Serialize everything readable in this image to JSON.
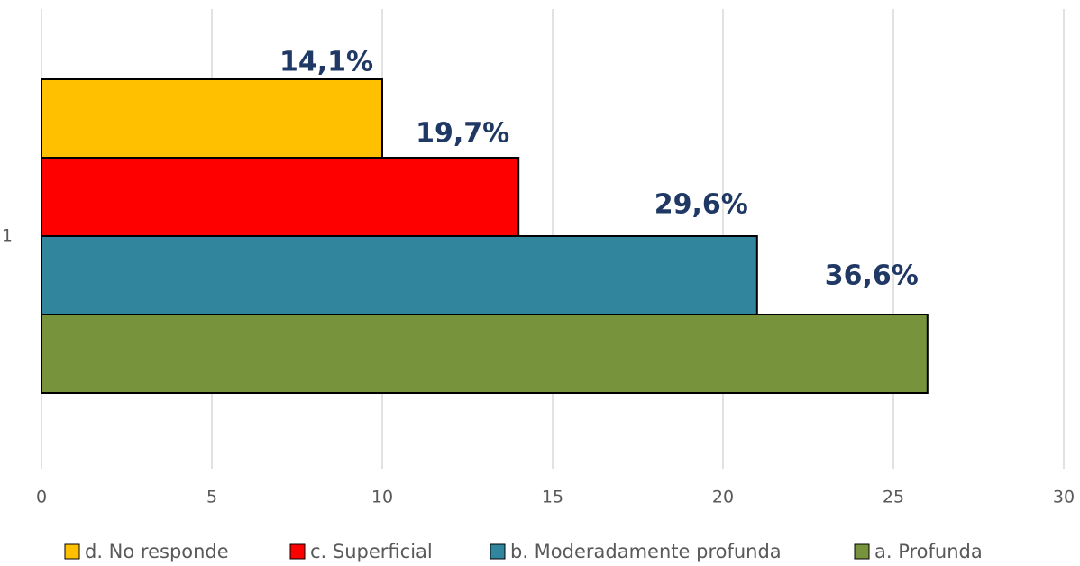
{
  "chart_data": {
    "type": "hbar",
    "categories": [
      "1"
    ],
    "series": [
      {
        "name": "d. No responde",
        "color": "#ffc000",
        "values": [
          10
        ],
        "value_labels": [
          "14,1%"
        ]
      },
      {
        "name": "c. Superficial",
        "color": "#ff0000",
        "values": [
          14
        ],
        "value_labels": [
          "19,7%"
        ]
      },
      {
        "name": "b. Moderadamente profunda",
        "color": "#31859c",
        "values": [
          21
        ],
        "value_labels": [
          "29,6%"
        ]
      },
      {
        "name": "a. Profunda",
        "color": "#77933c",
        "values": [
          26
        ],
        "value_labels": [
          "36,6%"
        ]
      }
    ],
    "xlim": [
      0,
      30
    ],
    "xticks": [
      0,
      5,
      10,
      15,
      20,
      25,
      30
    ],
    "grid": true,
    "legend": "bottom"
  }
}
